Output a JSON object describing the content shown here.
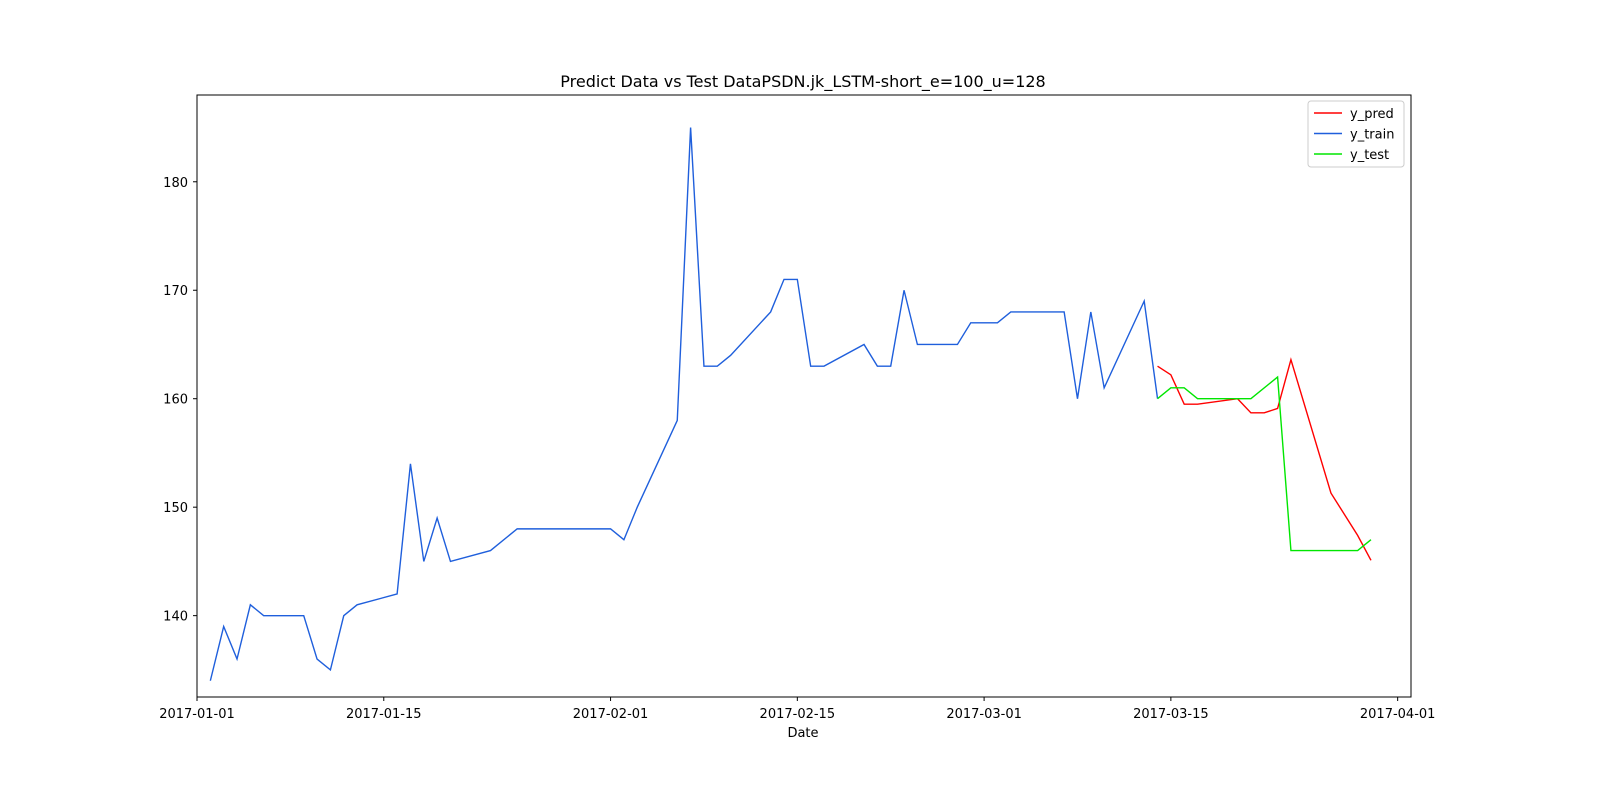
{
  "chart_data": {
    "type": "line",
    "title": "Predict Data vs Test DataPSDN.jk_LSTM-short_e=100_u=128",
    "xlabel": "Date",
    "ylabel": "",
    "x_type": "date",
    "xlim": [
      "2017-01-01",
      "2017-04-02"
    ],
    "ylim": [
      132.5,
      188.0
    ],
    "x_ticks": [
      "2017-01-01",
      "2017-01-15",
      "2017-02-01",
      "2017-02-15",
      "2017-03-01",
      "2017-03-15",
      "2017-04-01"
    ],
    "y_ticks": [
      140,
      150,
      160,
      170,
      180
    ],
    "grid": false,
    "legend": {
      "position": "top-right",
      "entries": [
        "y_pred",
        "y_train",
        "y_test"
      ]
    },
    "series": [
      {
        "name": "y_pred",
        "color": "#ff0000",
        "points": [
          [
            "2017-03-14",
            163.0
          ],
          [
            "2017-03-15",
            162.2
          ],
          [
            "2017-03-16",
            159.5
          ],
          [
            "2017-03-17",
            159.5
          ],
          [
            "2017-03-20",
            160.0
          ],
          [
            "2017-03-21",
            158.7
          ],
          [
            "2017-03-22",
            158.7
          ],
          [
            "2017-03-23",
            159.1
          ],
          [
            "2017-03-24",
            163.6
          ],
          [
            "2017-03-27",
            151.3
          ],
          [
            "2017-03-29",
            147.4
          ],
          [
            "2017-03-30",
            145.1
          ]
        ]
      },
      {
        "name": "y_train",
        "color": "#1f5fdc",
        "points": [
          [
            "2017-01-02",
            134
          ],
          [
            "2017-01-03",
            139
          ],
          [
            "2017-01-04",
            136
          ],
          [
            "2017-01-05",
            141
          ],
          [
            "2017-01-06",
            140
          ],
          [
            "2017-01-09",
            140
          ],
          [
            "2017-01-10",
            136
          ],
          [
            "2017-01-11",
            135
          ],
          [
            "2017-01-12",
            140
          ],
          [
            "2017-01-13",
            141
          ],
          [
            "2017-01-16",
            142
          ],
          [
            "2017-01-17",
            154
          ],
          [
            "2017-01-18",
            145
          ],
          [
            "2017-01-19",
            149
          ],
          [
            "2017-01-20",
            145
          ],
          [
            "2017-01-23",
            146
          ],
          [
            "2017-01-25",
            148
          ],
          [
            "2017-01-31",
            148
          ],
          [
            "2017-02-01",
            148
          ],
          [
            "2017-02-02",
            147
          ],
          [
            "2017-02-03",
            150
          ],
          [
            "2017-02-06",
            158
          ],
          [
            "2017-02-07",
            185
          ],
          [
            "2017-02-08",
            163
          ],
          [
            "2017-02-09",
            163
          ],
          [
            "2017-02-10",
            164
          ],
          [
            "2017-02-13",
            168
          ],
          [
            "2017-02-14",
            171
          ],
          [
            "2017-02-15",
            171
          ],
          [
            "2017-02-16",
            163
          ],
          [
            "2017-02-17",
            163
          ],
          [
            "2017-02-20",
            165
          ],
          [
            "2017-02-21",
            163
          ],
          [
            "2017-02-22",
            163
          ],
          [
            "2017-02-23",
            170
          ],
          [
            "2017-02-24",
            165
          ],
          [
            "2017-02-27",
            165
          ],
          [
            "2017-02-28",
            167
          ],
          [
            "2017-03-02",
            167
          ],
          [
            "2017-03-03",
            168
          ],
          [
            "2017-03-07",
            168
          ],
          [
            "2017-03-08",
            160
          ],
          [
            "2017-03-09",
            168
          ],
          [
            "2017-03-10",
            161
          ],
          [
            "2017-03-13",
            169
          ],
          [
            "2017-03-14",
            160
          ]
        ]
      },
      {
        "name": "y_test",
        "color": "#00e600",
        "points": [
          [
            "2017-03-14",
            160
          ],
          [
            "2017-03-15",
            161
          ],
          [
            "2017-03-16",
            161
          ],
          [
            "2017-03-17",
            160
          ],
          [
            "2017-03-21",
            160
          ],
          [
            "2017-03-23",
            162
          ],
          [
            "2017-03-24",
            146
          ],
          [
            "2017-03-29",
            146
          ],
          [
            "2017-03-30",
            147
          ]
        ]
      }
    ]
  }
}
